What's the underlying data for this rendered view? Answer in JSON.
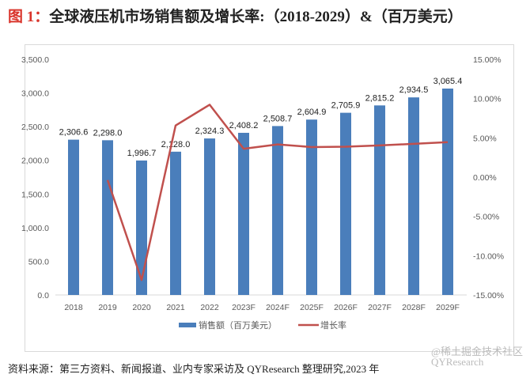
{
  "title": {
    "prefix": "图 1：",
    "text": "全球液压机市场销售额及增长率:（2018-2029）&（百万美元）"
  },
  "chart_data": {
    "type": "bar+line",
    "categories": [
      "2018",
      "2019",
      "2020",
      "2021",
      "2022",
      "2023F",
      "2024F",
      "2025F",
      "2026F",
      "2027F",
      "2028F",
      "2029F"
    ],
    "series": [
      {
        "name": "销售额（百万美元）",
        "type": "bar",
        "axis": "left",
        "color": "#4a7ebb",
        "values": [
          2306.6,
          2298.0,
          1996.7,
          2128.0,
          2324.3,
          2408.2,
          2508.7,
          2604.9,
          2705.9,
          2815.2,
          2934.5,
          3065.4
        ],
        "labels": [
          "2,306.6",
          "2,298.0",
          "1,996.7",
          "2,128.0",
          "2,324.3",
          "2,408.2",
          "2,508.7",
          "2,604.9",
          "2,705.9",
          "2,815.2",
          "2,934.5",
          "3,065.4"
        ]
      },
      {
        "name": "增长率",
        "type": "line",
        "axis": "right",
        "color": "#c0504d",
        "values": [
          null,
          -0.37,
          -13.1,
          6.58,
          9.22,
          3.61,
          4.17,
          3.83,
          3.88,
          4.04,
          4.24,
          4.46
        ]
      }
    ],
    "left_axis": {
      "min": 0,
      "max": 3500,
      "ticks": [
        "0.0",
        "500.0",
        "1,000.0",
        "1,500.0",
        "2,000.0",
        "2,500.0",
        "3,000.0",
        "3,500.0"
      ]
    },
    "right_axis": {
      "min": -15,
      "max": 15,
      "unit": "%",
      "ticks": [
        "-15.00%",
        "-10.00%",
        "-5.00%",
        "0.00%",
        "5.00%",
        "10.00%",
        "15.00%"
      ]
    },
    "grid": false,
    "legend": "bottom"
  },
  "source": "资料来源：第三方资料、新闻报道、业内专家采访及 QYResearch 整理研究,2023 年",
  "watermark": "@稀土掘金技术社区 QYResearch"
}
